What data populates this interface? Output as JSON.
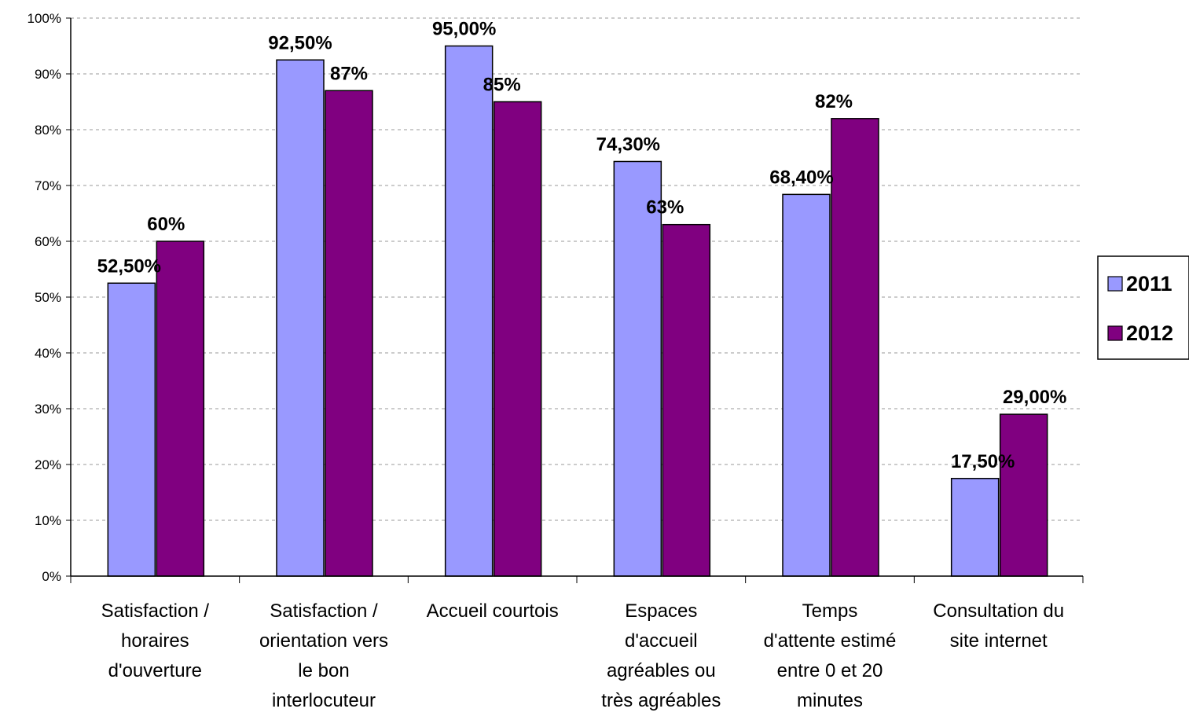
{
  "chart_data": {
    "type": "bar",
    "categories": [
      [
        "Satisfaction /",
        "horaires",
        "d'ouverture"
      ],
      [
        "Satisfaction /",
        "orientation vers",
        "le bon",
        "interlocuteur"
      ],
      [
        "Accueil courtois"
      ],
      [
        "Espaces",
        "d'accueil",
        "agréables ou",
        "très agréables"
      ],
      [
        "Temps",
        "d'attente estimé",
        "entre 0 et 20",
        "minutes"
      ],
      [
        "Consultation du",
        "site internet"
      ]
    ],
    "series": [
      {
        "name": "2011",
        "color": "#9999ff",
        "values": [
          52.5,
          92.5,
          95.0,
          74.3,
          68.4,
          17.5
        ],
        "labels": [
          "52,50%",
          "92,50%",
          "95,00%",
          "74,30%",
          "68,40%",
          "17,50%"
        ]
      },
      {
        "name": "2012",
        "color": "#800080",
        "values": [
          60,
          87,
          85,
          63,
          82,
          29
        ],
        "labels": [
          "60%",
          "87%",
          "85%",
          "63%",
          "82%",
          "29,00%"
        ]
      }
    ],
    "ylim": [
      0,
      100
    ],
    "yticks": [
      0,
      10,
      20,
      30,
      40,
      50,
      60,
      70,
      80,
      90,
      100
    ],
    "ytick_labels": [
      "0%",
      "10%",
      "20%",
      "30%",
      "40%",
      "50%",
      "60%",
      "70%",
      "80%",
      "90%",
      "100%"
    ],
    "grid": true,
    "legend_position": "right"
  }
}
